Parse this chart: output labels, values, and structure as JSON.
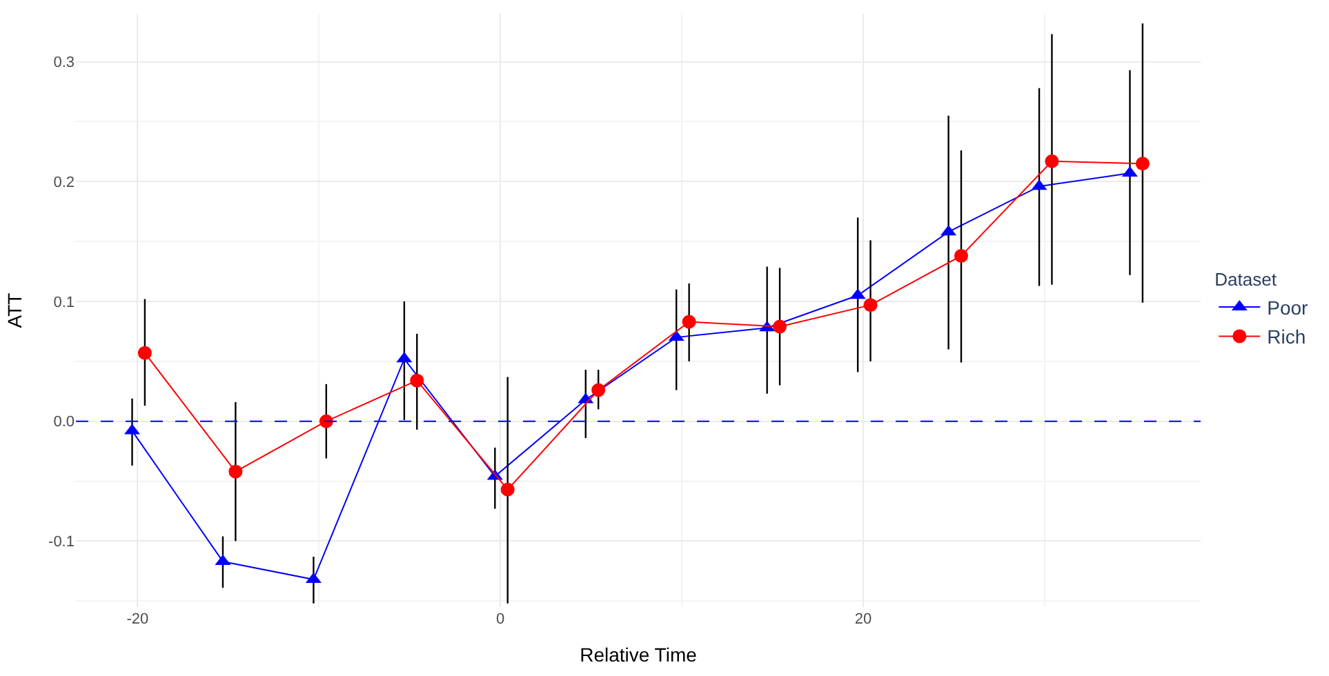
{
  "chart_data": {
    "type": "line",
    "xlabel": "Relative Time",
    "ylabel": "ATT",
    "legend_title": "Dataset",
    "legend": "right",
    "xlim": [
      -23.4,
      38.6
    ],
    "xticks": [
      -20,
      0,
      20
    ],
    "ylim": [
      -0.155,
      0.34
    ],
    "yticks": [
      -0.1,
      {
        "value": 0,
        "label": "0.0"
      },
      0.1,
      0.2,
      0.3
    ],
    "grid": true,
    "ref_lines": [
      {
        "axis": "y",
        "value": 0,
        "color": "#0000ff",
        "line_style": "dashed"
      }
    ],
    "series": [
      {
        "name": "Poor",
        "color": "#0000ff",
        "marker": "triangle",
        "x": [
          -20.3,
          -15.3,
          -10.3,
          -5.3,
          -0.3,
          4.7,
          9.7,
          14.7,
          19.7,
          24.7,
          29.7,
          34.7
        ],
        "values": [
          -0.008,
          -0.117,
          -0.132,
          0.052,
          -0.046,
          0.018,
          0.07,
          0.078,
          0.105,
          0.158,
          0.196,
          0.207
        ],
        "errors": [
          [
            -0.037,
            0.019
          ],
          [
            -0.139,
            -0.096
          ],
          [
            -0.152,
            -0.113
          ],
          [
            0.001,
            0.1
          ],
          [
            -0.073,
            -0.022
          ],
          [
            -0.014,
            0.043
          ],
          [
            0.026,
            0.11
          ],
          [
            0.023,
            0.129
          ],
          [
            0.041,
            0.17
          ],
          [
            0.06,
            0.255
          ],
          [
            0.113,
            0.278
          ],
          [
            0.122,
            0.293
          ]
        ]
      },
      {
        "name": "Rich",
        "color": "#ff0000",
        "marker": "circle",
        "x": [
          -19.6,
          -14.6,
          -9.6,
          -4.6,
          0.4,
          5.4,
          10.4,
          15.4,
          20.4,
          25.4,
          30.4,
          35.4
        ],
        "values": [
          0.057,
          -0.042,
          0.0,
          0.034,
          -0.057,
          0.026,
          0.083,
          0.079,
          0.097,
          0.138,
          0.217,
          0.215
        ],
        "errors": [
          [
            0.013,
            0.102
          ],
          [
            -0.1,
            0.016
          ],
          [
            -0.031,
            0.031
          ],
          [
            -0.007,
            0.073
          ],
          [
            -0.152,
            0.037
          ],
          [
            0.01,
            0.043
          ],
          [
            0.05,
            0.115
          ],
          [
            0.03,
            0.128
          ],
          [
            0.05,
            0.151
          ],
          [
            0.049,
            0.226
          ],
          [
            0.114,
            0.323
          ],
          [
            0.099,
            0.332
          ]
        ]
      }
    ]
  }
}
